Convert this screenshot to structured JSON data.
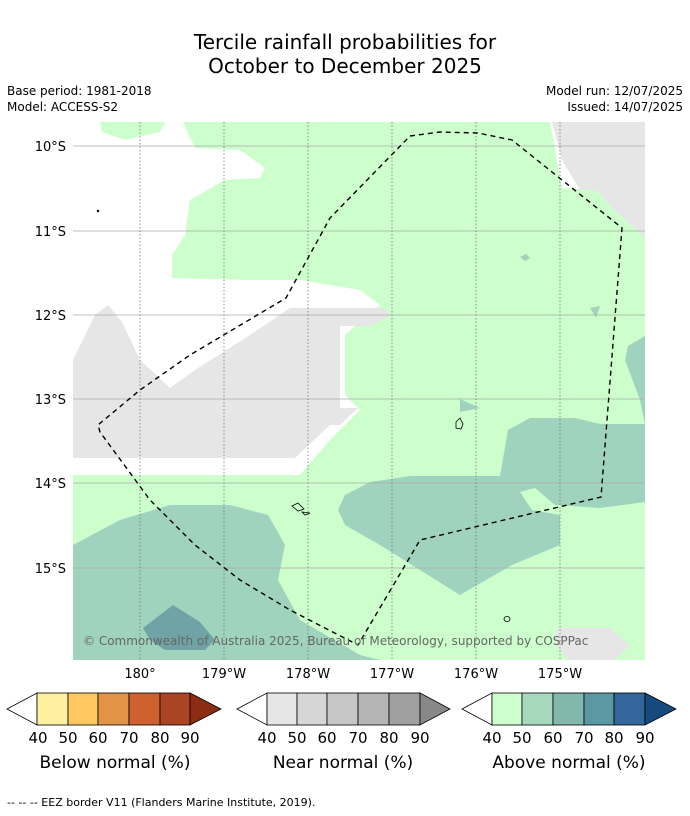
{
  "title_line1": "Tercile rainfall probabilities for",
  "title_line2": "October to December 2025",
  "base_period": "Base period: 1981-2018",
  "model": "Model: ACCESS-S2",
  "model_run": "Model run: 12/07/2025",
  "issued": "Issued: 14/07/2025",
  "lat_labels": [
    "10°S",
    "11°S",
    "12°S",
    "13°S",
    "14°S",
    "15°S"
  ],
  "lon_labels": [
    "180°",
    "179°W",
    "178°W",
    "177°W",
    "176°W",
    "175°W"
  ],
  "copyright": "© Commonwealth of Australia 2025, Bureau of Meteorology, supported by COSPPac",
  "colorbars": [
    {
      "label": "Below normal (%)",
      "colors": [
        "#fff0a0",
        "#fdc95f",
        "#e29446",
        "#cf6131",
        "#ab4424",
        "#8c2c12"
      ]
    },
    {
      "label": "Near normal (%)",
      "colors": [
        "#e6e6e6",
        "#d6d6d6",
        "#c6c6c6",
        "#b4b4b4",
        "#a0a0a0",
        "#888888"
      ]
    },
    {
      "label": "Above normal (%)",
      "colors": [
        "#ccffcc",
        "#a6d9bc",
        "#82b8ab",
        "#5b98a3",
        "#33669a",
        "#164a7e"
      ]
    }
  ],
  "tick_values": [
    "40",
    "50",
    "60",
    "70",
    "80",
    "90"
  ],
  "footnote": "--  --  -- EEZ border V11 (Flanders Marine Institute, 2019)."
}
